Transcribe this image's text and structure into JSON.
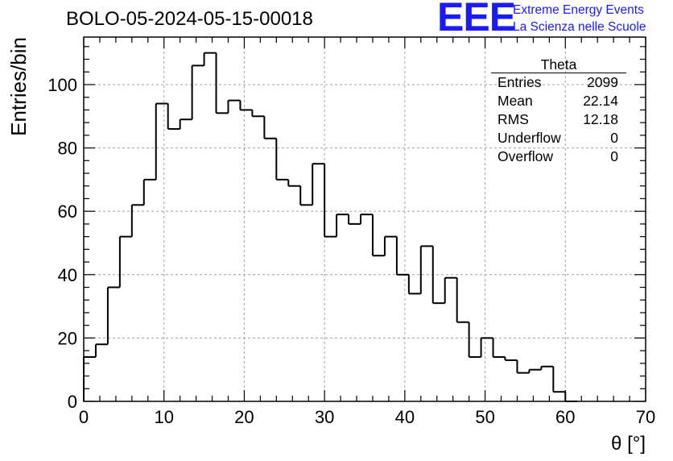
{
  "header": {
    "run_title": "BOLO-05-2024-05-15-00018",
    "logo_text": "EEE",
    "logo_line1": "Extreme Energy Events",
    "logo_line2": "La Scienza nelle Scuole",
    "logo_color": "#1a1aff"
  },
  "stats": {
    "title": "Theta",
    "rows": [
      {
        "label": "Entries",
        "value": "2099"
      },
      {
        "label": "Mean",
        "value": "22.14"
      },
      {
        "label": "RMS",
        "value": "12.18"
      },
      {
        "label": "Underflow",
        "value": "0"
      },
      {
        "label": "Overflow",
        "value": "0"
      }
    ]
  },
  "chart_data": {
    "type": "bar",
    "histogram": true,
    "xlabel": "θ [°]",
    "ylabel": "Entries/bin",
    "xlim": [
      0,
      70
    ],
    "ylim": [
      0,
      115
    ],
    "bin_width": 1.5,
    "bin_edges_start": 0,
    "values": [
      14,
      18,
      36,
      52,
      62,
      70,
      94,
      86,
      89,
      106,
      110,
      91,
      95,
      92,
      90,
      83,
      70,
      68,
      62,
      75,
      52,
      59,
      56,
      59,
      46,
      52,
      40,
      34,
      49,
      31,
      39,
      25,
      14,
      20,
      14,
      13,
      9,
      10,
      11,
      3,
      0
    ],
    "x_ticks": [
      0,
      10,
      20,
      30,
      40,
      50,
      60,
      70
    ],
    "y_ticks": [
      0,
      20,
      40,
      60,
      80,
      100
    ],
    "grid": true,
    "line_color": "#000000"
  }
}
